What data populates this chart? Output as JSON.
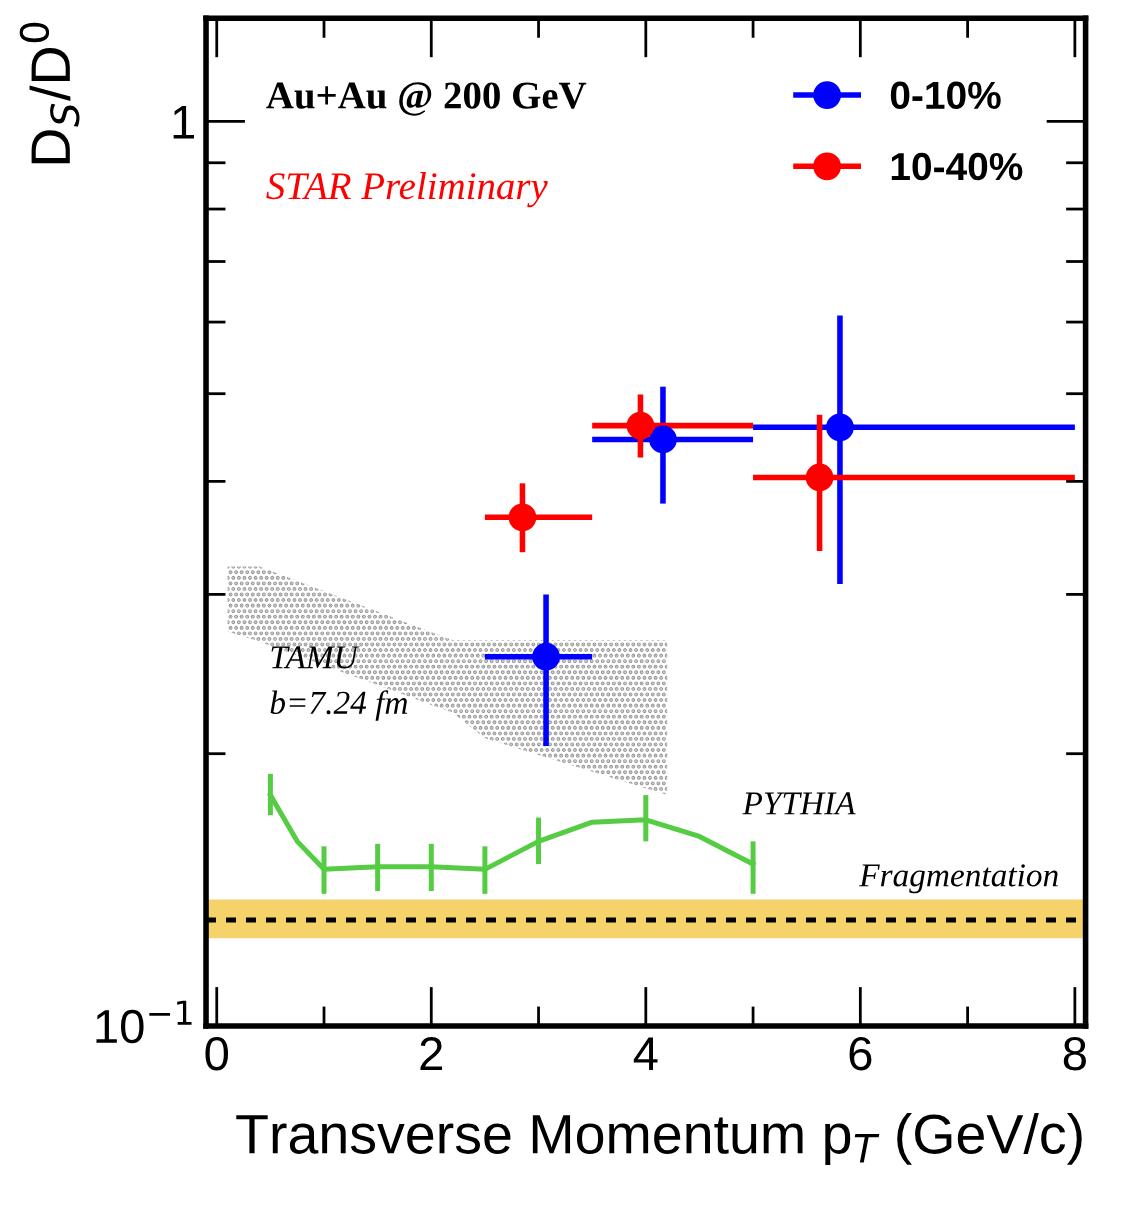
{
  "chart_data": {
    "type": "scatter",
    "xlabel": "Transverse Momentum p$_{T}$ (GeV/c)",
    "ylabel": "D$_{S}$/D$^{0}$",
    "log": "y",
    "xlim": [
      -0.1,
      8.1
    ],
    "ylim": [
      0.1,
      1.3
    ],
    "xticks": [
      0,
      {
        "value": 1,
        "label": null
      },
      2,
      {
        "value": 3,
        "label": null
      },
      4,
      {
        "value": 5,
        "label": null
      },
      6,
      {
        "value": 7,
        "label": null
      },
      8
    ],
    "yticks": [
      {
        "value": 0.1,
        "label": "10$^{−1}$"
      },
      {
        "value": 0.2,
        "label": null
      },
      {
        "value": 0.3,
        "label": null
      },
      {
        "value": 0.4,
        "label": null
      },
      {
        "value": 0.5,
        "label": null
      },
      {
        "value": 0.6,
        "label": null
      },
      {
        "value": 0.7,
        "label": null
      },
      {
        "value": 0.8,
        "label": null
      },
      {
        "value": 0.9,
        "label": null
      },
      1
    ],
    "grid": false,
    "legend": "top right",
    "series": [
      {
        "name": "0-10%",
        "marker": "circle",
        "color": "#0000ff",
        "x": [
          3.07,
          4.16,
          5.81
        ],
        "values": [
          0.256,
          0.445,
          0.459
        ],
        "errors": [
          [
            0.204,
            0.3
          ],
          [
            0.378,
            0.509
          ],
          [
            0.308,
            0.61
          ]
        ],
        "xerrors": [
          [
            2.5,
            3.5
          ],
          [
            3.5,
            5.0
          ],
          [
            5.0,
            8.0
          ]
        ]
      },
      {
        "name": "10-40%",
        "marker": "circle",
        "color": "#ff0000",
        "x": [
          2.85,
          3.95,
          5.62
        ],
        "values": [
          0.365,
          0.461,
          0.404
        ],
        "errors": [
          [
            0.334,
            0.398
          ],
          [
            0.425,
            0.499
          ],
          [
            0.335,
            0.474
          ]
        ],
        "xerrors": [
          [
            2.5,
            3.5
          ],
          [
            3.5,
            5.0
          ],
          [
            5.0,
            8.0
          ]
        ]
      },
      {
        "type": "area",
        "color": "#999999",
        "x": [
          0.1,
          0.4,
          2.2,
          2.5,
          4.2
        ],
        "values": [
          null,
          null,
          null,
          null,
          null
        ],
        "upper": [
          0.322,
          0.322,
          0.267,
          0.267,
          0.267
        ],
        "lower": [
          0.273,
          0.266,
          0.222,
          0.208,
          0.18
        ]
      },
      {
        "type": "line",
        "color": "#55cc44",
        "x": [
          0.5,
          0.75,
          1,
          1.5,
          2,
          2.5,
          3,
          3.5,
          4,
          4.5,
          5
        ],
        "values": [
          0.18,
          0.16,
          0.149,
          0.15,
          0.15,
          0.149,
          0.16,
          0.168,
          0.169,
          0.162,
          0.151
        ],
        "errors": [
          [
            0.171,
            0.19
          ],
          null,
          [
            0.14,
            0.158
          ],
          [
            0.141,
            0.159
          ],
          [
            0.141,
            0.159
          ],
          [
            0.14,
            0.158
          ],
          [
            0.151,
            0.17
          ],
          null,
          [
            0.16,
            0.18
          ],
          null,
          [
            0.14,
            0.16
          ]
        ]
      }
    ],
    "ref_lines": [
      {
        "axis": "y",
        "value": 0.131,
        "label": "Fragmentation",
        "color": "#000000",
        "line_style": "dotted"
      }
    ],
    "bands": [
      {
        "axis": "y",
        "from": 0.125,
        "to": 0.138,
        "color": "#f5d36a"
      }
    ],
    "annotations": [
      "Au+Au @ 200 GeV",
      "STAR Preliminary",
      "TAMU",
      "b=7.24 fm",
      "PYTHIA"
    ]
  }
}
